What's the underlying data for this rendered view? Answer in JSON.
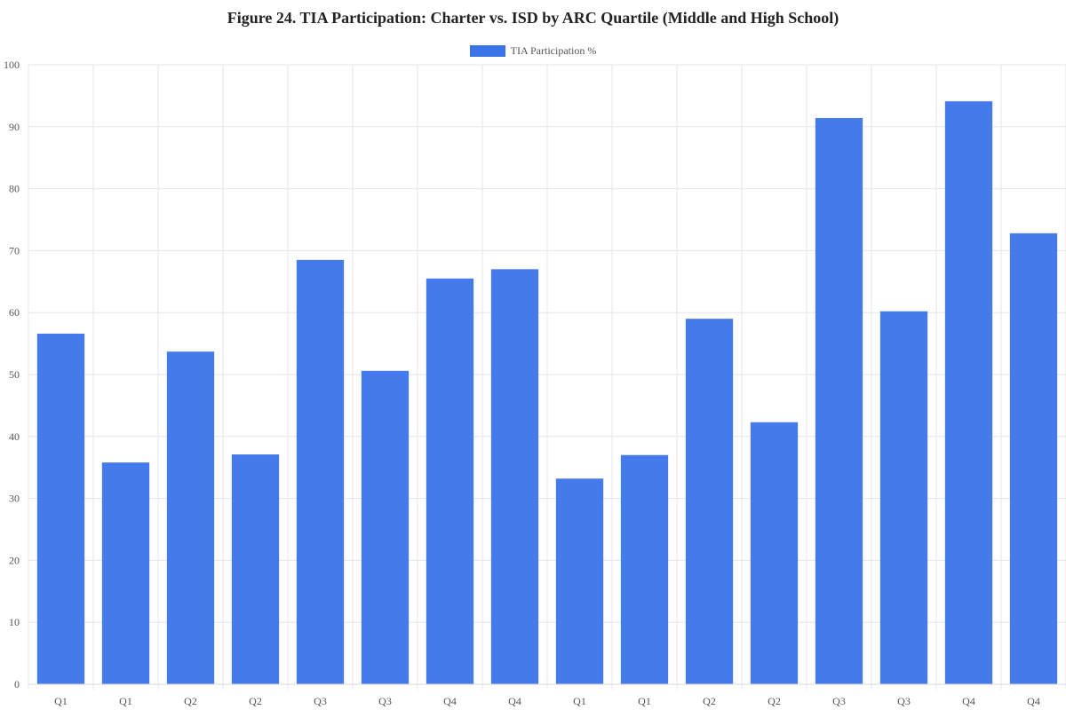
{
  "chart_data": {
    "type": "bar",
    "title": "Figure 24. TIA Participation: Charter vs. ISD by ARC Quartile (Middle and High School)",
    "categories": [
      "Q1",
      "Q1",
      "Q2",
      "Q2",
      "Q3",
      "Q3",
      "Q4",
      "Q4",
      "Q1",
      "Q1",
      "Q2",
      "Q2",
      "Q3",
      "Q3",
      "Q4",
      "Q4"
    ],
    "series": [
      {
        "name": "TIA Participation %",
        "color": "#3b73e9",
        "values": [
          56.6,
          35.8,
          53.7,
          37.1,
          68.5,
          50.6,
          65.5,
          67.0,
          33.2,
          37.0,
          59.0,
          42.3,
          91.4,
          60.2,
          94.1,
          72.8
        ]
      }
    ],
    "xlabel": "",
    "ylabel": "",
    "ylim": [
      0,
      100
    ],
    "yticks": [
      0,
      10,
      20,
      30,
      40,
      50,
      60,
      70,
      80,
      90,
      100
    ],
    "grid": true,
    "legend": "top-center"
  }
}
